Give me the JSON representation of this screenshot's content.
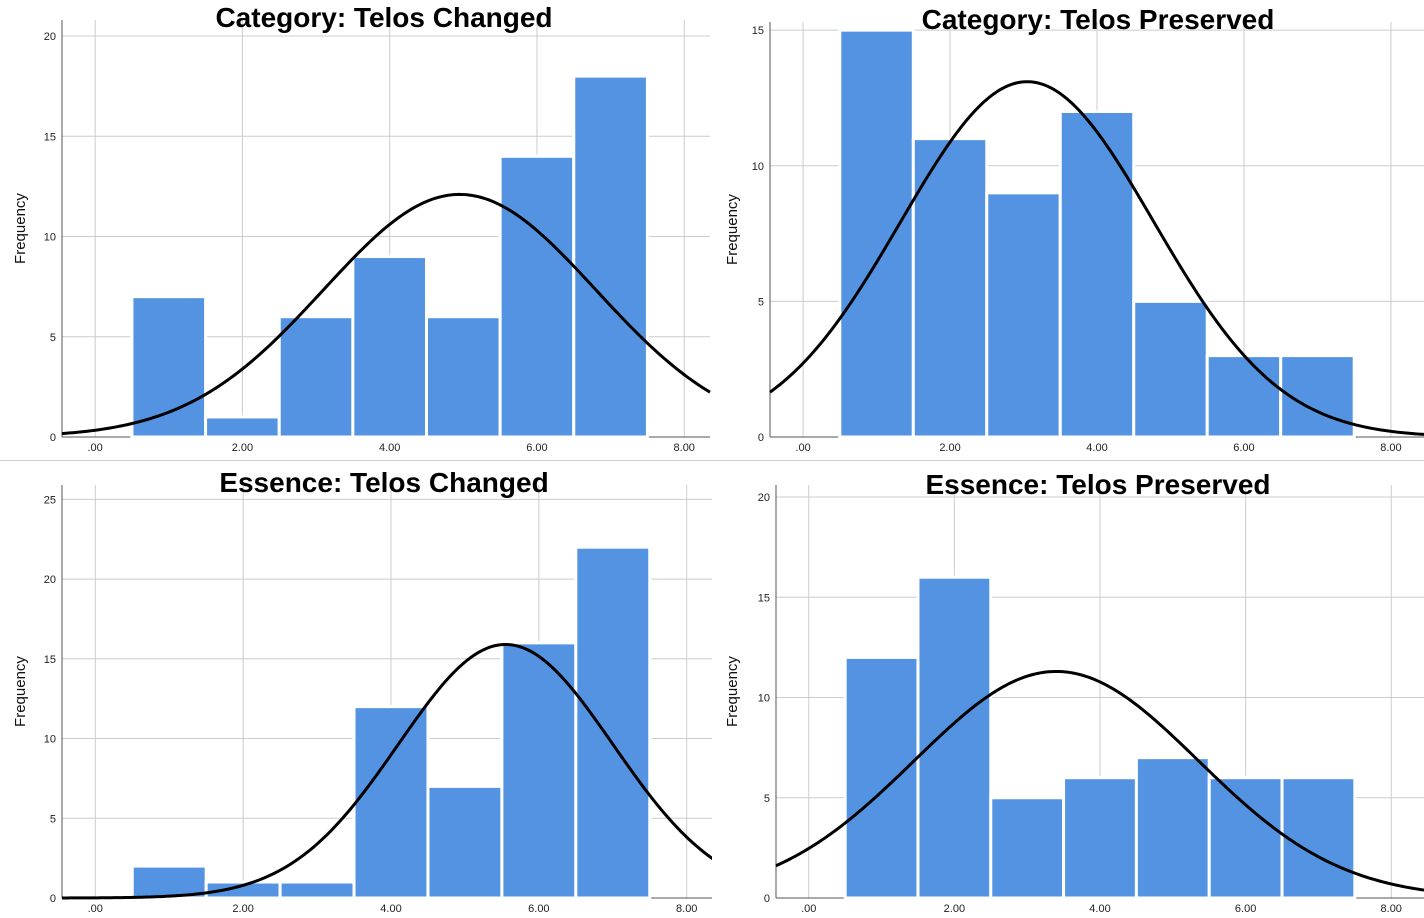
{
  "colors": {
    "bar": "#5393e1",
    "bar_stroke": "#ffffff",
    "curve": "#000000",
    "grid": "#cccccc"
  },
  "chart_data": [
    {
      "type": "bar",
      "title": "Category: Telos Changed",
      "ylabel": "Frequency",
      "xticks": [
        ".00",
        "2.00",
        "4.00",
        "6.00",
        "8.00"
      ],
      "xtick_values": [
        0,
        2,
        4,
        6,
        8
      ],
      "yticks": [
        0,
        5,
        10,
        15,
        20
      ],
      "xlim": [
        -0.45,
        8.35
      ],
      "ylim": [
        0,
        20.8
      ],
      "bins": [
        1,
        2,
        3,
        4,
        5,
        6,
        7
      ],
      "values": [
        7,
        1,
        6,
        9,
        6,
        14,
        18
      ],
      "normal_curve": {
        "mean": 4.95,
        "sd": 1.85,
        "peak": 12.1
      }
    },
    {
      "type": "bar",
      "title": "Category: Telos Preserved",
      "ylabel": "Frequency",
      "xticks": [
        ".00",
        "2.00",
        "4.00",
        "6.00",
        "8.00"
      ],
      "xtick_values": [
        0,
        2,
        4,
        6,
        8
      ],
      "yticks": [
        0,
        5,
        10,
        15
      ],
      "xlim": [
        -0.45,
        8.45
      ],
      "ylim": [
        0,
        15.3
      ],
      "bins": [
        1,
        2,
        3,
        4,
        5,
        6,
        7
      ],
      "values": [
        15,
        11,
        9,
        12,
        5,
        3,
        3
      ],
      "normal_curve": {
        "mean": 3.05,
        "sd": 1.72,
        "peak": 13.1
      }
    },
    {
      "type": "bar",
      "title": "Essence: Telos Changed",
      "ylabel": "Frequency",
      "xticks": [
        ".00",
        "2.00",
        "4.00",
        "6.00",
        "8.00"
      ],
      "xtick_values": [
        0,
        2,
        4,
        6,
        8
      ],
      "yticks": [
        0,
        5,
        10,
        15,
        20,
        25
      ],
      "xlim": [
        -0.45,
        8.45
      ],
      "ylim": [
        0,
        25.9
      ],
      "bins": [
        1,
        2,
        3,
        4,
        5,
        6,
        7
      ],
      "values": [
        2,
        1,
        1,
        12,
        7,
        16,
        22
      ],
      "normal_curve": {
        "mean": 5.55,
        "sd": 1.45,
        "peak": 15.9
      }
    },
    {
      "type": "bar",
      "title": "Essence: Telos Preserved",
      "ylabel": "Frequency",
      "xticks": [
        ".00",
        "2.00",
        "4.00",
        "6.00",
        "8.00"
      ],
      "xtick_values": [
        0,
        2,
        4,
        6,
        8
      ],
      "yticks": [
        0,
        5,
        10,
        15,
        20
      ],
      "xlim": [
        -0.45,
        8.45
      ],
      "ylim": [
        0,
        20.6
      ],
      "bins": [
        1,
        2,
        3,
        4,
        5,
        6,
        7
      ],
      "values": [
        12,
        16,
        5,
        6,
        7,
        6,
        6
      ],
      "normal_curve": {
        "mean": 3.4,
        "sd": 1.95,
        "peak": 11.3
      }
    }
  ]
}
